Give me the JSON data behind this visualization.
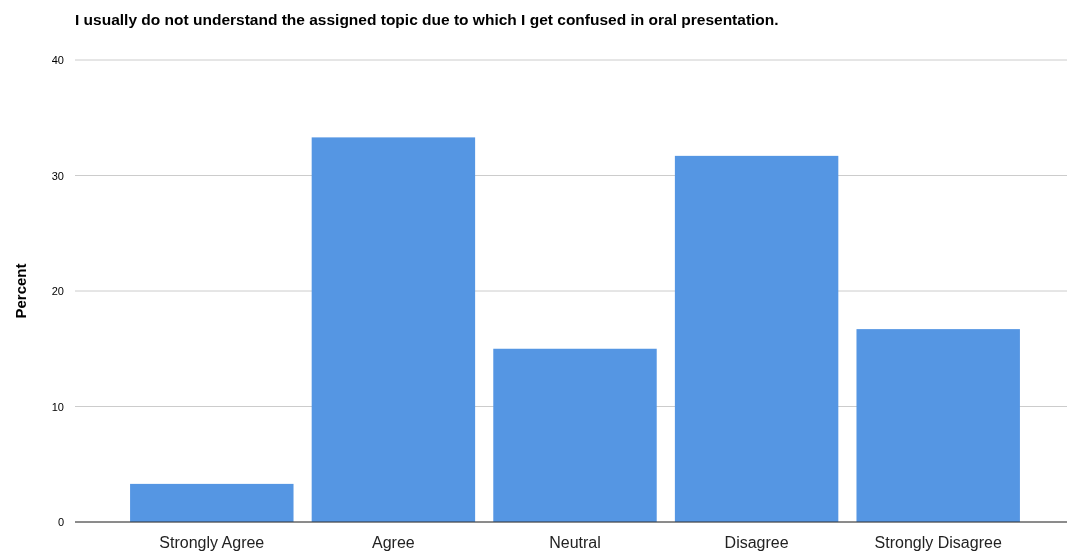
{
  "chart_data": {
    "type": "bar",
    "title": "I usually do not understand the assigned topic due to which I get confused in oral presentation.",
    "ylabel": "Percent",
    "categories": [
      "Strongly Agree",
      "Agree",
      "Neutral",
      "Disagree",
      "Strongly Disagree"
    ],
    "values": [
      3.3,
      33.3,
      15.0,
      31.7,
      16.7
    ],
    "color": "#5596e3",
    "ylim": [
      0,
      40
    ],
    "yticks": [
      0,
      10,
      20,
      30,
      40
    ],
    "grid": "y"
  }
}
